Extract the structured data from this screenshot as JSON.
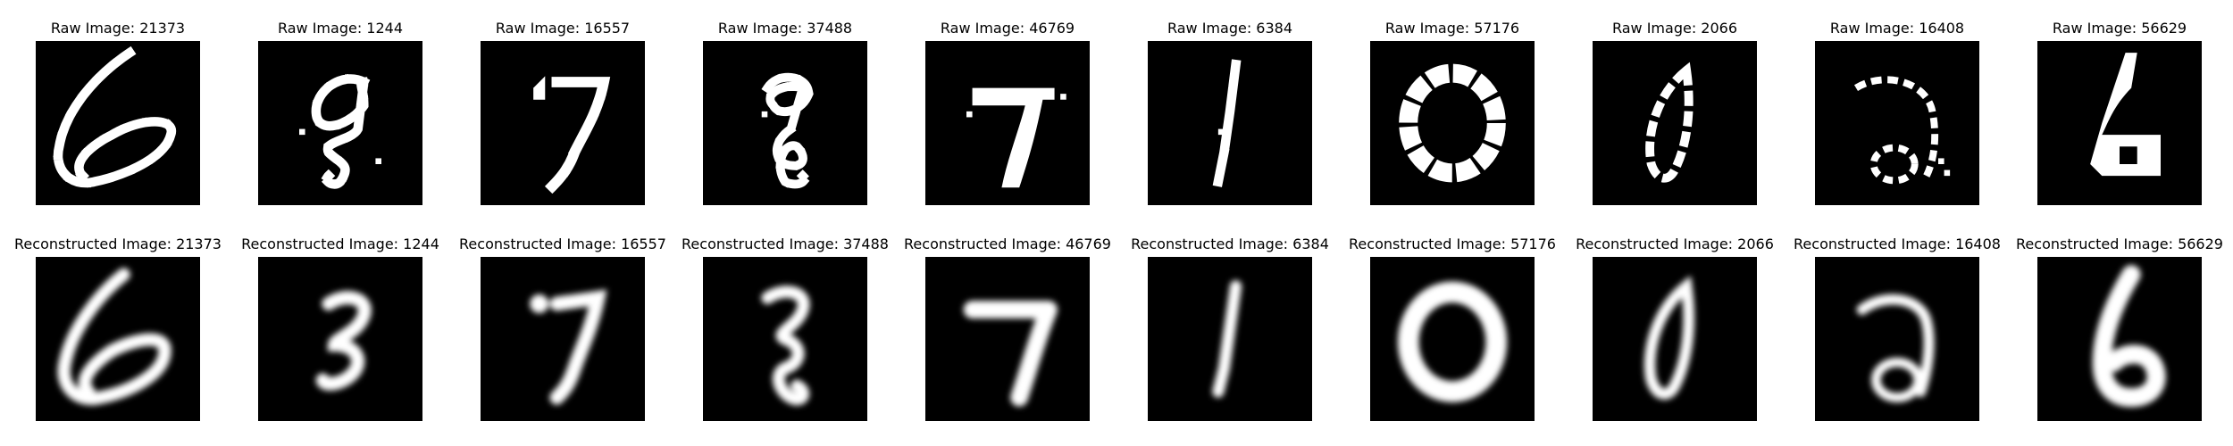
{
  "figure": {
    "raw_row": {
      "captions": [
        "Raw Image: 21373",
        "Raw Image: 1244",
        "Raw Image: 16557",
        "Raw Image: 37488",
        "Raw Image: 46769",
        "Raw Image: 6384",
        "Raw Image: 57176",
        "Raw Image: 2066",
        "Raw Image: 16408",
        "Raw Image: 56629"
      ]
    },
    "reconstructed_row": {
      "captions": [
        "Reconstructed Image: 21373",
        "Reconstructed Image: 1244",
        "Reconstructed Image: 16557",
        "Reconstructed Image: 37488",
        "Reconstructed Image: 46769",
        "Reconstructed Image: 6384",
        "Reconstructed Image: 57176",
        "Reconstructed Image: 2066",
        "Reconstructed Image: 16408",
        "Reconstructed Image: 56629"
      ]
    },
    "colors": {
      "background": "#ffffff",
      "image_background": "#000000",
      "stroke": "#ffffff"
    }
  }
}
